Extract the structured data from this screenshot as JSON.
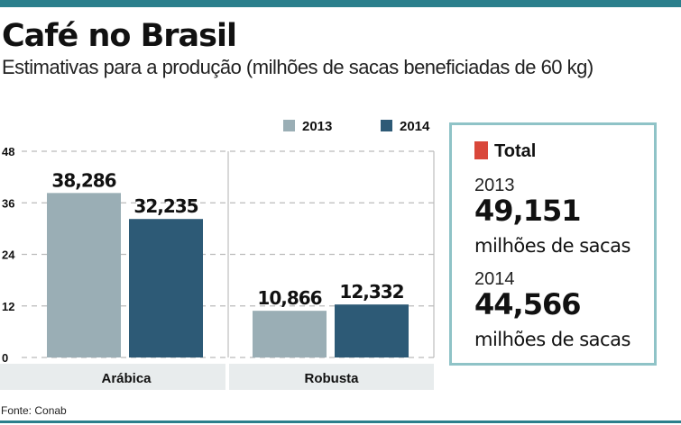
{
  "header": {
    "title": "Café no Brasil",
    "subtitle": "Estimativas para a produção (milhões de sacas beneficiadas de 60 kg)"
  },
  "chart_data": {
    "type": "bar",
    "categories": [
      "Arábica",
      "Robusta"
    ],
    "series": [
      {
        "name": "2013",
        "color": "#9aaeb5",
        "values": [
          38.286,
          10.866
        ],
        "labels": [
          "38,286",
          "10,866"
        ]
      },
      {
        "name": "2014",
        "color": "#2d5a76",
        "values": [
          32.235,
          12.332
        ],
        "labels": [
          "32,235",
          "12,332"
        ]
      }
    ],
    "yticks": [
      "0",
      "12",
      "24",
      "36",
      "48"
    ],
    "ylim": [
      0,
      48
    ],
    "grid": true,
    "legend": "top-right"
  },
  "total": {
    "title": "Total",
    "accent": "#d9473a",
    "entries": [
      {
        "year": "2013",
        "value": "49,151",
        "unit": "milhões de sacas"
      },
      {
        "year": "2014",
        "value": "44,566",
        "unit": "milhões de sacas"
      }
    ]
  },
  "source": "Fonte: Conab"
}
